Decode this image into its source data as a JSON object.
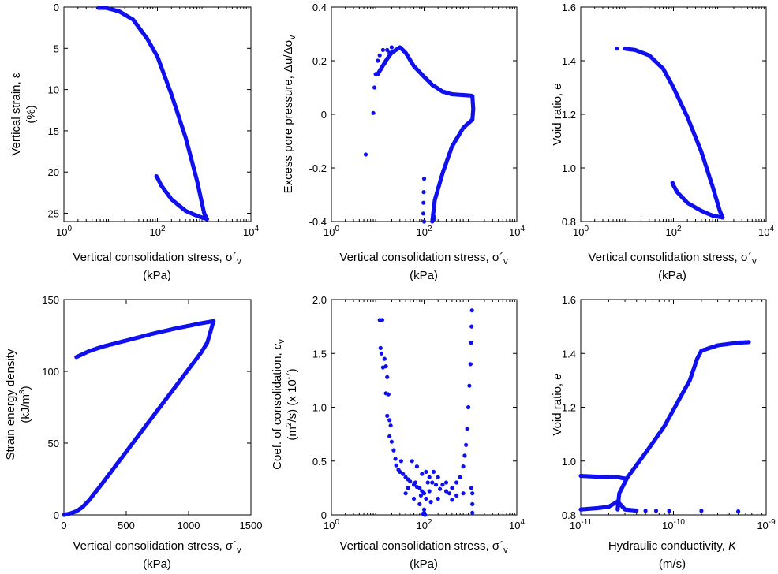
{
  "colors": {
    "points": "#1010ee",
    "axes": "#000000"
  },
  "chart_data": [
    {
      "id": "a",
      "type": "scatter",
      "xscale": "log",
      "yinvert": true,
      "xlim": [
        1,
        10000
      ],
      "ylim": [
        0,
        26
      ],
      "xticks": [
        {
          "v": 1,
          "b": "10",
          "e": "0"
        },
        {
          "v": 100,
          "b": "10",
          "e": "2"
        },
        {
          "v": 10000,
          "b": "10",
          "e": "4"
        }
      ],
      "yticks": [
        0,
        5,
        10,
        15,
        20,
        25
      ],
      "xlabel": "Vertical consolidation stress, σ´v (kPa)",
      "ylabel": "Vertical strain, ε (%)",
      "segments": [
        [
          [
            5.5,
            0.1
          ],
          [
            8,
            0.1
          ],
          [
            15,
            0.5
          ],
          [
            30,
            1.5
          ],
          [
            60,
            3.8
          ],
          [
            100,
            6.0
          ],
          [
            200,
            10.6
          ],
          [
            400,
            15.8
          ],
          [
            700,
            21.0
          ],
          [
            1000,
            25.0
          ],
          [
            1150,
            25.7
          ]
        ],
        [
          [
            1150,
            25.7
          ],
          [
            700,
            25.3
          ],
          [
            400,
            24.7
          ],
          [
            200,
            23.3
          ],
          [
            120,
            21.6
          ],
          [
            100,
            20.7
          ],
          [
            95,
            20.5
          ]
        ]
      ]
    },
    {
      "id": "b",
      "type": "scatter",
      "xscale": "log",
      "xlim": [
        1,
        10000
      ],
      "ylim": [
        -0.4,
        0.4
      ],
      "xticks": [
        {
          "v": 1,
          "b": "10",
          "e": "0"
        },
        {
          "v": 100,
          "b": "10",
          "e": "2"
        },
        {
          "v": 10000,
          "b": "10",
          "e": "4"
        }
      ],
      "yticks": [
        -0.4,
        -0.2,
        0,
        0.2,
        0.4
      ],
      "xlabel": "Vertical consolidation stress, σ´v (kPa)",
      "ylabel": "Excess pore pressure, Δu/Δσv",
      "points": [
        [
          5.5,
          -0.15
        ],
        [
          8,
          0.005
        ],
        [
          8.5,
          0.1
        ],
        [
          9,
          0.15
        ],
        [
          10,
          0.2
        ],
        [
          11,
          0.22
        ],
        [
          13,
          0.24
        ],
        [
          16,
          0.24
        ],
        [
          20,
          0.25
        ],
        [
          12,
          0.17
        ],
        [
          14,
          0.19
        ],
        [
          18,
          0.23
        ],
        [
          100,
          -0.24
        ],
        [
          98,
          -0.29
        ],
        [
          97,
          -0.33
        ],
        [
          96,
          -0.37
        ],
        [
          100,
          -0.4
        ],
        [
          160,
          -0.38
        ],
        [
          165,
          -0.39
        ]
      ],
      "segments": [
        [
          [
            10,
            0.15
          ],
          [
            15,
            0.2
          ],
          [
            20,
            0.23
          ],
          [
            30,
            0.25
          ],
          [
            40,
            0.23
          ],
          [
            60,
            0.18
          ],
          [
            100,
            0.14
          ],
          [
            150,
            0.11
          ],
          [
            250,
            0.085
          ],
          [
            400,
            0.075
          ],
          [
            700,
            0.072
          ],
          [
            1000,
            0.07
          ],
          [
            1100,
            0.068
          ]
        ],
        [
          [
            1100,
            0.068
          ],
          [
            1150,
            0.02
          ],
          [
            1100,
            -0.02
          ],
          [
            700,
            -0.05
          ],
          [
            400,
            -0.12
          ],
          [
            250,
            -0.22
          ],
          [
            170,
            -0.32
          ],
          [
            150,
            -0.4
          ]
        ]
      ]
    },
    {
      "id": "c",
      "type": "scatter",
      "xscale": "log",
      "xlim": [
        1,
        10000
      ],
      "ylim": [
        0.8,
        1.6
      ],
      "xticks": [
        {
          "v": 1,
          "b": "10",
          "e": "0"
        },
        {
          "v": 100,
          "b": "10",
          "e": "2"
        },
        {
          "v": 10000,
          "b": "10",
          "e": "4"
        }
      ],
      "yticks": [
        0.8,
        1.0,
        1.2,
        1.4,
        1.6
      ],
      "xlabel": "Vertical consolidation stress, σ´v (kPa)",
      "ylabel": "Void ratio, e",
      "points": [
        [
          6,
          1.445
        ]
      ],
      "segments": [
        [
          [
            9,
            1.445
          ],
          [
            15,
            1.44
          ],
          [
            30,
            1.42
          ],
          [
            60,
            1.37
          ],
          [
            100,
            1.3
          ],
          [
            200,
            1.19
          ],
          [
            400,
            1.06
          ],
          [
            700,
            0.93
          ],
          [
            1000,
            0.84
          ],
          [
            1150,
            0.815
          ]
        ],
        [
          [
            1150,
            0.815
          ],
          [
            700,
            0.822
          ],
          [
            400,
            0.84
          ],
          [
            200,
            0.87
          ],
          [
            120,
            0.91
          ],
          [
            100,
            0.935
          ],
          [
            95,
            0.945
          ]
        ]
      ]
    },
    {
      "id": "d",
      "type": "scatter",
      "xscale": "linear",
      "xlim": [
        0,
        1500
      ],
      "ylim": [
        0,
        150
      ],
      "xticks": [
        0,
        500,
        1000,
        1500
      ],
      "yticks": [
        0,
        50,
        100,
        150
      ],
      "xlabel": "Vertical consolidation stress, σ´v (kPa)",
      "ylabel": "Strain energy density (kJ/m3)",
      "segments": [
        [
          [
            0,
            0
          ],
          [
            50,
            1
          ],
          [
            100,
            2.5
          ],
          [
            150,
            5.5
          ],
          [
            200,
            10
          ],
          [
            300,
            21
          ],
          [
            500,
            44
          ],
          [
            700,
            67
          ],
          [
            900,
            90
          ],
          [
            1100,
            113
          ],
          [
            1150,
            120
          ],
          [
            1200,
            135
          ]
        ],
        [
          [
            1200,
            135
          ],
          [
            1100,
            133.5
          ],
          [
            900,
            130
          ],
          [
            700,
            126
          ],
          [
            500,
            121.5
          ],
          [
            300,
            117
          ],
          [
            200,
            114
          ],
          [
            100,
            110
          ]
        ]
      ]
    },
    {
      "id": "e",
      "type": "scatter",
      "xscale": "log",
      "xlim": [
        1,
        10000
      ],
      "ylim": [
        0,
        2.0
      ],
      "xticks": [
        {
          "v": 1,
          "b": "10",
          "e": "0"
        },
        {
          "v": 100,
          "b": "10",
          "e": "2"
        },
        {
          "v": 10000,
          "b": "10",
          "e": "4"
        }
      ],
      "yticks": [
        0,
        0.5,
        1.0,
        1.5,
        2.0
      ],
      "xlabel": "Vertical consolidation stress, σ´v (kPa)",
      "ylabel": "Coef. of consolidation, cv (m2/s) (x 10-7)",
      "points": [
        [
          11,
          1.81
        ],
        [
          12.5,
          1.81
        ],
        [
          11.5,
          1.55
        ],
        [
          12,
          1.5
        ],
        [
          14,
          1.45
        ],
        [
          13,
          1.37
        ],
        [
          15,
          1.38
        ],
        [
          16,
          1.28
        ],
        [
          15,
          1.13
        ],
        [
          17,
          1.12
        ],
        [
          16,
          0.92
        ],
        [
          18,
          0.88
        ],
        [
          19,
          0.83
        ],
        [
          18,
          0.73
        ],
        [
          20,
          0.68
        ],
        [
          22,
          0.6
        ],
        [
          24,
          0.52
        ],
        [
          25,
          0.46
        ],
        [
          28,
          0.42
        ],
        [
          32,
          0.5
        ],
        [
          30,
          0.4
        ],
        [
          35,
          0.38
        ],
        [
          40,
          0.35
        ],
        [
          45,
          0.33
        ],
        [
          50,
          0.31
        ],
        [
          60,
          0.28
        ],
        [
          70,
          0.26
        ],
        [
          80,
          0.25
        ],
        [
          90,
          0.22
        ],
        [
          100,
          0.2
        ],
        [
          110,
          0.15
        ],
        [
          120,
          0.3
        ],
        [
          130,
          0.35
        ],
        [
          150,
          0.3
        ],
        [
          180,
          0.28
        ],
        [
          220,
          0.24
        ],
        [
          300,
          0.22
        ],
        [
          400,
          0.25
        ],
        [
          500,
          0.3
        ],
        [
          600,
          0.35
        ],
        [
          700,
          0.45
        ],
        [
          750,
          0.55
        ],
        [
          800,
          0.65
        ],
        [
          850,
          0.8
        ],
        [
          900,
          1.0
        ],
        [
          950,
          1.2
        ],
        [
          1000,
          1.4
        ],
        [
          1030,
          1.6
        ],
        [
          1060,
          1.75
        ],
        [
          1080,
          1.9
        ],
        [
          40,
          0.2
        ],
        [
          60,
          0.15
        ],
        [
          80,
          0.1
        ],
        [
          100,
          0.05
        ],
        [
          100,
          0.02
        ],
        [
          105,
          0.0
        ],
        [
          95,
          0.01
        ],
        [
          1100,
          0.02
        ],
        [
          1100,
          0.1
        ],
        [
          1100,
          0.2
        ],
        [
          1050,
          0.25
        ],
        [
          700,
          0.2
        ],
        [
          500,
          0.18
        ],
        [
          300,
          0.3
        ],
        [
          200,
          0.35
        ],
        [
          160,
          0.4
        ],
        [
          130,
          0.22
        ],
        [
          70,
          0.45
        ],
        [
          55,
          0.5
        ],
        [
          90,
          0.38
        ],
        [
          110,
          0.4
        ],
        [
          250,
          0.28
        ],
        [
          350,
          0.2
        ],
        [
          45,
          0.25
        ],
        [
          65,
          0.3
        ],
        [
          85,
          0.18
        ],
        [
          140,
          0.12
        ],
        [
          200,
          0.15
        ],
        [
          400,
          0.14
        ]
      ]
    },
    {
      "id": "f",
      "type": "scatter",
      "xscale": "log",
      "xlim": [
        1e-11,
        1e-09
      ],
      "ylim": [
        0.8,
        1.6
      ],
      "xticks": [
        {
          "v": 1e-11,
          "b": "10",
          "e": "-11"
        },
        {
          "v": 1e-10,
          "b": "10",
          "e": "-10"
        },
        {
          "v": 1e-09,
          "b": "10",
          "e": "-9"
        }
      ],
      "yticks": [
        0.8,
        1.0,
        1.2,
        1.4,
        1.6
      ],
      "xlabel": "Hydraulic conductivity, K (m/s)",
      "ylabel": "Void ratio, e",
      "points": [
        [
          9e-11,
          0.815
        ],
        [
          2e-10,
          0.815
        ],
        [
          5e-10,
          0.813
        ],
        [
          6.5e-11,
          0.815
        ],
        [
          5e-11,
          0.815
        ]
      ],
      "segments": [
        [
          [
            6.5e-10,
            1.442
          ],
          [
            5e-10,
            1.44
          ],
          [
            3e-10,
            1.43
          ],
          [
            2e-10,
            1.41
          ],
          [
            1.8e-10,
            1.38
          ],
          [
            1.5e-10,
            1.3
          ],
          [
            1.2e-10,
            1.24
          ],
          [
            8e-11,
            1.13
          ],
          [
            5.5e-11,
            1.05
          ],
          [
            3.2e-11,
            0.94
          ],
          [
            2.6e-11,
            0.88
          ],
          [
            2.5e-11,
            0.82
          ]
        ],
        [
          [
            1e-11,
            0.945
          ],
          [
            1.5e-11,
            0.942
          ],
          [
            2.5e-11,
            0.94
          ],
          [
            3e-11,
            0.935
          ]
        ],
        [
          [
            1e-11,
            0.82
          ],
          [
            1.5e-11,
            0.825
          ],
          [
            2e-11,
            0.83
          ],
          [
            2.5e-11,
            0.85
          ],
          [
            3e-11,
            0.82
          ],
          [
            4e-11,
            0.816
          ]
        ]
      ]
    }
  ]
}
